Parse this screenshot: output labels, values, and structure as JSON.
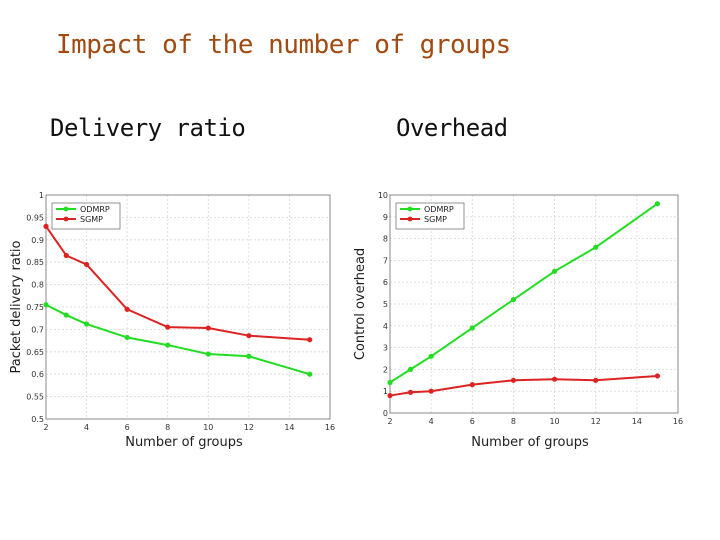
{
  "slide": {
    "title": "Impact of the number of groups",
    "left_label": "Delivery ratio",
    "right_label": "Overhead"
  },
  "colors": {
    "odmrp": "#22dd22",
    "sgmp": "#dd2222",
    "grid": "#d6d6d6",
    "frame": "#888888"
  },
  "chart_data": [
    {
      "type": "line",
      "title": "",
      "xlabel": "Number of groups",
      "ylabel": "Packet delivery ratio",
      "xlim": [
        2,
        16
      ],
      "ylim": [
        0.5,
        1
      ],
      "xticks": [
        2,
        4,
        6,
        8,
        10,
        12,
        14,
        16
      ],
      "yticks": [
        0.5,
        0.55,
        0.6,
        0.65,
        0.7,
        0.75,
        0.8,
        0.85,
        0.9,
        0.95,
        1
      ],
      "ytick_labels": [
        "0.5",
        "0.55",
        "0.6",
        "0.65",
        "0.7",
        "0.75",
        "0.8",
        "0.85",
        "0.9",
        "0.95",
        "1"
      ],
      "grid": true,
      "legend_position": "top-left",
      "series": [
        {
          "name": "ODMRP",
          "x": [
            2,
            3,
            4,
            6,
            8,
            10,
            12,
            15
          ],
          "values": [
            0.755,
            0.732,
            0.712,
            0.682,
            0.665,
            0.645,
            0.64,
            0.6
          ],
          "color": "#22dd22"
        },
        {
          "name": "SGMP",
          "x": [
            2,
            3,
            4,
            6,
            8,
            10,
            12,
            15
          ],
          "values": [
            0.93,
            0.865,
            0.845,
            0.745,
            0.705,
            0.703,
            0.686,
            0.677
          ],
          "color": "#dd2222"
        }
      ]
    },
    {
      "type": "line",
      "title": "",
      "xlabel": "Number of groups",
      "ylabel": "Control overhead",
      "xlim": [
        2,
        16
      ],
      "ylim": [
        0,
        10
      ],
      "xticks": [
        2,
        4,
        6,
        8,
        10,
        12,
        14,
        16
      ],
      "yticks": [
        0,
        1,
        2,
        3,
        4,
        5,
        6,
        7,
        8,
        9,
        10
      ],
      "ytick_labels": [
        "0",
        "1",
        "2",
        "3",
        "4",
        "5",
        "6",
        "7",
        "8",
        "9",
        "10"
      ],
      "grid": true,
      "legend_position": "top-left",
      "series": [
        {
          "name": "ODMRP",
          "x": [
            2,
            3,
            4,
            6,
            8,
            10,
            12,
            15
          ],
          "values": [
            1.4,
            2.0,
            2.6,
            3.9,
            5.2,
            6.5,
            7.6,
            9.6
          ],
          "color": "#22dd22"
        },
        {
          "name": "SGMP",
          "x": [
            2,
            3,
            4,
            6,
            8,
            10,
            12,
            15
          ],
          "values": [
            0.8,
            0.95,
            1.0,
            1.3,
            1.5,
            1.55,
            1.5,
            1.7
          ],
          "color": "#dd2222"
        }
      ]
    }
  ]
}
